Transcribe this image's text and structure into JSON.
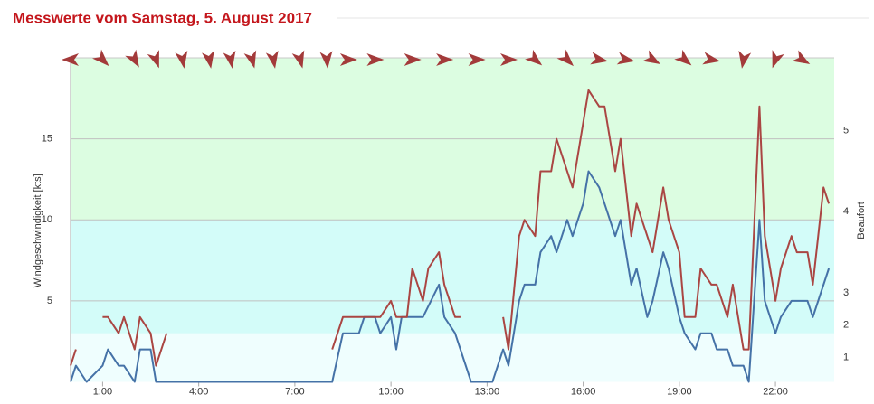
{
  "chart_data": {
    "type": "line",
    "title": "Messwerte vom Samstag, 5. August 2017",
    "ylabel": "Windgeschwindigkeit [kts]",
    "y2label": "Beaufort",
    "xlim": [
      0,
      1430
    ],
    "xticks": [
      {
        "value": 60,
        "label": "1:00"
      },
      {
        "value": 240,
        "label": "4:00"
      },
      {
        "value": 420,
        "label": "7:00"
      },
      {
        "value": 600,
        "label": "10:00"
      },
      {
        "value": 780,
        "label": "13:00"
      },
      {
        "value": 960,
        "label": "16:00"
      },
      {
        "value": 1140,
        "label": "19:00"
      },
      {
        "value": 1320,
        "label": "22:00"
      }
    ],
    "ylim": [
      0,
      20
    ],
    "yticks": [
      5,
      10,
      15
    ],
    "grid": true,
    "bands": [
      {
        "from": 0,
        "to": 3,
        "color": "#effefe"
      },
      {
        "from": 3,
        "to": 10,
        "color": "#d3fcf9"
      },
      {
        "from": 10,
        "to": 20,
        "color": "#dcfde1"
      }
    ],
    "beaufort_labels": [
      {
        "kts": 1.5,
        "label": "1"
      },
      {
        "kts": 3.5,
        "label": "2"
      },
      {
        "kts": 5.5,
        "label": "3"
      },
      {
        "kts": 10.5,
        "label": "4"
      },
      {
        "kts": 15.5,
        "label": "5"
      }
    ],
    "direction": {
      "color": "#a33a3a",
      "x": [
        0,
        60,
        120,
        160,
        210,
        260,
        300,
        340,
        380,
        430,
        480,
        520,
        570,
        640,
        700,
        760,
        820,
        870,
        930,
        990,
        1040,
        1090,
        1150,
        1200,
        1260,
        1320,
        1370
      ],
      "angle": [
        180,
        45,
        60,
        70,
        80,
        80,
        80,
        75,
        80,
        75,
        85,
        0,
        0,
        0,
        0,
        0,
        0,
        40,
        45,
        10,
        10,
        30,
        40,
        10,
        100,
        110,
        30
      ]
    },
    "series": [
      {
        "color": "#4572a7",
        "x": [
          0,
          10,
          30,
          60,
          70,
          90,
          100,
          120,
          130,
          150,
          160,
          490,
          510,
          540,
          550,
          570,
          580,
          600,
          610,
          620,
          660,
          690,
          700,
          720,
          750,
          790,
          810,
          820,
          840,
          850,
          870,
          880,
          900,
          910,
          930,
          940,
          960,
          970,
          990,
          1020,
          1030,
          1050,
          1060,
          1080,
          1090,
          1110,
          1120,
          1140,
          1150,
          1170,
          1180,
          1200,
          1210,
          1230,
          1240,
          1260,
          1270,
          1290,
          1300,
          1320,
          1330,
          1350,
          1380,
          1390,
          1420
        ],
        "values": [
          0,
          1,
          0,
          1,
          2,
          1,
          1,
          0,
          2,
          2,
          0,
          0,
          3,
          3,
          4,
          4,
          3,
          4,
          2,
          4,
          4,
          6,
          4,
          3,
          0,
          0,
          2,
          1,
          5,
          6,
          6,
          8,
          9,
          8,
          10,
          9,
          11,
          13,
          12,
          9,
          10,
          6,
          7,
          4,
          5,
          8,
          7,
          4,
          3,
          2,
          3,
          3,
          2,
          2,
          1,
          1,
          0,
          10,
          5,
          3,
          4,
          5,
          5,
          4,
          7
        ]
      },
      {
        "color": "#aa4643",
        "x": [
          0,
          10,
          30,
          60,
          70,
          90,
          100,
          120,
          130,
          150,
          160,
          180,
          300,
          490,
          510,
          580,
          600,
          610,
          630,
          640,
          660,
          670,
          690,
          700,
          720,
          730,
          770,
          810,
          820,
          840,
          850,
          870,
          880,
          900,
          910,
          940,
          970,
          990,
          1000,
          1020,
          1030,
          1050,
          1060,
          1080,
          1090,
          1110,
          1120,
          1140,
          1150,
          1170,
          1180,
          1200,
          1210,
          1230,
          1240,
          1260,
          1270,
          1290,
          1300,
          1320,
          1330,
          1350,
          1360,
          1380,
          1390,
          1410,
          1420
        ],
        "values": [
          1,
          2,
          null,
          4,
          4,
          3,
          4,
          2,
          4,
          3,
          1,
          3,
          null,
          2,
          4,
          4,
          5,
          4,
          4,
          7,
          5,
          7,
          8,
          6,
          4,
          4,
          null,
          4,
          2,
          9,
          10,
          9,
          13,
          13,
          15,
          12,
          18,
          17,
          17,
          13,
          15,
          9,
          11,
          9,
          8,
          12,
          10,
          8,
          4,
          4,
          7,
          6,
          6,
          4,
          6,
          2,
          2,
          17,
          9,
          5,
          7,
          9,
          8,
          8,
          6,
          12,
          11
        ]
      }
    ]
  }
}
